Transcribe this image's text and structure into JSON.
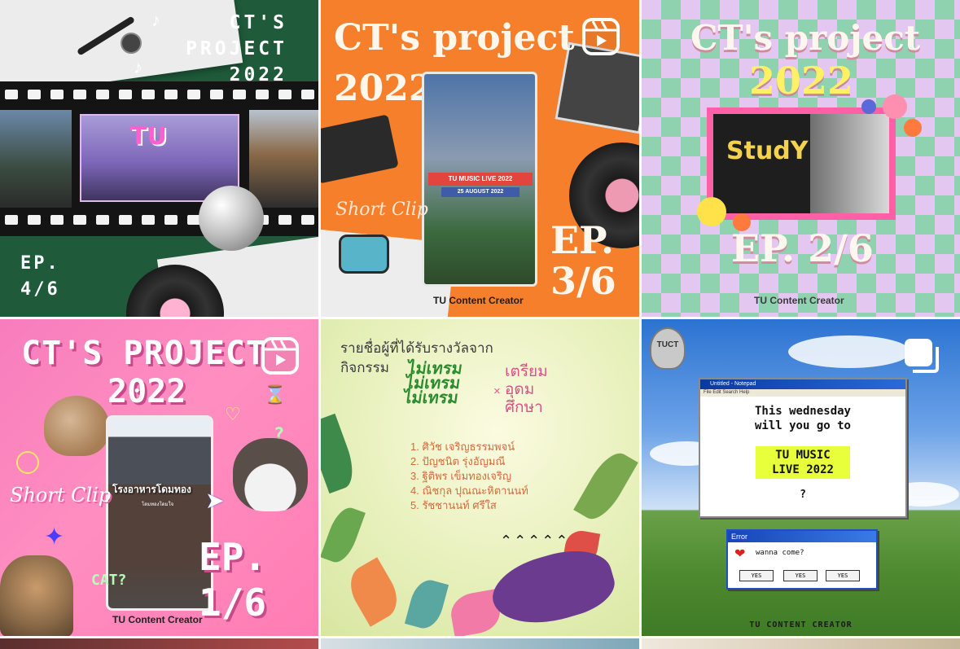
{
  "grid": {
    "posts": [
      {
        "name": "post-1",
        "title_lines": [
          "CT'S",
          "PROJECT",
          "2022"
        ],
        "ep_lines": [
          "EP.",
          "4/6"
        ],
        "badge": "none",
        "colors": {
          "bg": "#1f5a3a"
        }
      },
      {
        "name": "post-2",
        "title_lines": [
          "CT's project",
          "2022"
        ],
        "short_clip": "Short Clip",
        "screen_banner_1": "TU MUSIC LIVE 2022",
        "screen_banner_2": "25 AUGUST 2022",
        "ep_lines": [
          "EP.",
          "3/6"
        ],
        "credit": "TU Content Creator",
        "badge": "reel",
        "colors": {
          "bg": "#f57f2b"
        }
      },
      {
        "name": "post-3",
        "title_line": "CT's project",
        "year": "2022",
        "ep": "EP. 2/6",
        "credit": "TU Content Creator",
        "badge": "none",
        "colors": {
          "bg_a": "#8fd2b0",
          "bg_b": "#e3c7f1"
        }
      },
      {
        "name": "post-4",
        "title_line": "CT'S PROJECT",
        "year": "2022",
        "short_clip": "Short Clip",
        "screen_caption": "โรงอาหารโดมทอง",
        "screen_subcaption": "โดมทองโดมใจ",
        "cat_label": "CAT?",
        "ep_lines": [
          "EP.",
          "1/6"
        ],
        "credit": "TU Content Creator",
        "badge": "reel",
        "colors": {
          "bg": "#ff8ec0"
        }
      },
      {
        "name": "post-5",
        "heading_lines": [
          "รายชื่อผู้ที่ได้รับรางวัลจาก",
          "กิจกรรม"
        ],
        "logo_left_lines": [
          "ไม่เทรม",
          "ไม่เทรม",
          "ไม่เทรม"
        ],
        "cross": "×",
        "logo_right_lines": [
          "เตรียม",
          "อุดม",
          "ศึกษา"
        ],
        "winners": [
          "1. ศิวัช เจริญธรรมพจน์",
          "2. ปัญชนิต รุ่งอัญมณี",
          "3. ฐิติพร เข็มทองเจริญ",
          "4. ณิชกุล ปุณณะหิตานนท์",
          "5. รัชชานนท์ ศรีใส"
        ],
        "badge": "none",
        "colors": {
          "text": "#d26b3c"
        }
      },
      {
        "name": "post-6",
        "bulb_label": "TUCT",
        "notepad_title": "Untitled - Notepad",
        "notepad_menu": "File  Edit  Search  Help",
        "notepad_lines": [
          "This wednesday",
          "will you go to"
        ],
        "highlight_lines": [
          "TU MUSIC",
          "LIVE 2022"
        ],
        "question": "?",
        "error_title": "Error",
        "error_msg": "wanna come?",
        "buttons": [
          "YES",
          "YES",
          "YES"
        ],
        "credit": "TU CONTENT CREATOR",
        "badge": "multi",
        "colors": {
          "highlight": "#e8ff3c",
          "titlebar": "#1746b5"
        }
      }
    ]
  }
}
